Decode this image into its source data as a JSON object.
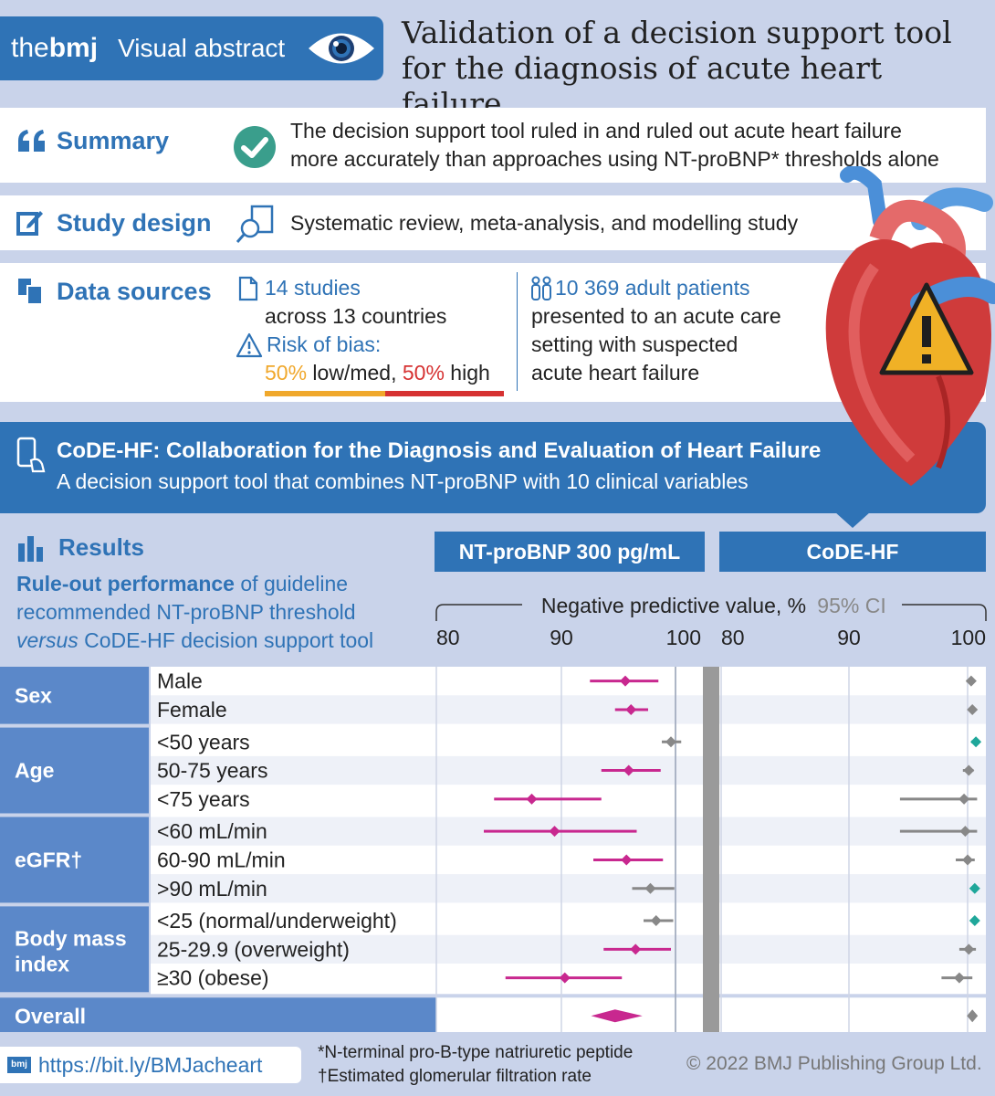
{
  "header": {
    "brand_the": "the",
    "brand_bmj": "bmj",
    "brand_label": "Visual abstract",
    "title_line1": "Validation of a decision support tool",
    "title_line2": "for the diagnosis of acute heart failure"
  },
  "summary": {
    "label": "Summary",
    "text_line1": "The decision support tool ruled in and ruled out acute heart failure",
    "text_line2": "more accurately than approaches using NT-proBNP* thresholds alone"
  },
  "study_design": {
    "label": "Study design",
    "text": "Systematic review, meta-analysis, and modelling study"
  },
  "data_sources": {
    "label": "Data sources",
    "studies": "14 studies",
    "countries": "across 13 countries",
    "risk_label": "Risk of bias:",
    "low_pct": "50%",
    "low_text": " low/med, ",
    "high_pct": "50%",
    "high_text": " high",
    "patients": "10 369 adult patients",
    "patients_line2": "presented to an acute care",
    "patients_line3": "setting with suspected",
    "patients_line4": "acute heart failure"
  },
  "banner": {
    "title": "CoDE-HF: Collaboration for the Diagnosis and Evaluation of Heart Failure",
    "subtitle": "A decision support tool that combines NT-proBNP with 10 clinical variables"
  },
  "results": {
    "label": "Results",
    "desc_bold": "Rule-out performance",
    "desc_rest": " of guideline",
    "desc_line2": "recommended NT-proBNP threshold",
    "desc_versus": "versus",
    "desc_line3_rest": " CoDE-HF decision support tool",
    "col1": "NT-proBNP 300 pg/mL",
    "col2": "CoDE-HF"
  },
  "footer": {
    "link": "https://bit.ly/BMJacheart",
    "note1": "*N-terminal pro-B-type natriuretic peptide",
    "note2": "†Estimated glomerular filtration rate",
    "copyright": "© 2022 BMJ Publishing Group Ltd."
  },
  "colors": {
    "accent": "#2f73b6",
    "nt_sig": "#c8288f",
    "nt_ns": "#888888",
    "code_sig": "#1fa79a",
    "code_ns": "#888888",
    "low": "#f0a82c",
    "high": "#d63232"
  },
  "chart_data": {
    "type": "forest",
    "axis_title": "Negative predictive value, %",
    "ci_label": "95% CI",
    "xlim": [
      80,
      100
    ],
    "ticks": [
      "80",
      "90",
      "100"
    ],
    "groups": [
      {
        "name": "Sex",
        "rows": [
          0,
          1
        ]
      },
      {
        "name": "Age",
        "rows": [
          2,
          3,
          4
        ]
      },
      {
        "name": "eGFR†",
        "rows": [
          5,
          6,
          7
        ]
      },
      {
        "name": "Body mass index",
        "rows": [
          8,
          9,
          10
        ]
      }
    ],
    "rows": [
      {
        "label": "Male",
        "nt": [
          95.6,
          92.5,
          98.5
        ],
        "nt_sig": true,
        "code": [
          100.3,
          99.9,
          100.6
        ],
        "code_sig": false
      },
      {
        "label": "Female",
        "nt": [
          96.1,
          94.7,
          97.6
        ],
        "nt_sig": true,
        "code": [
          100.4,
          100.1,
          100.7
        ],
        "code_sig": false
      },
      {
        "label": "<50 years",
        "nt": [
          99.6,
          98.8,
          100.5
        ],
        "nt_sig": false,
        "code": [
          100.7,
          100.3,
          101.0
        ],
        "code_sig": true
      },
      {
        "label": "50-75 years",
        "nt": [
          95.9,
          93.5,
          98.7
        ],
        "nt_sig": true,
        "code": [
          100.1,
          99.6,
          100.5
        ],
        "code_sig": false
      },
      {
        "label": "<75 years",
        "nt": [
          87.4,
          84.1,
          93.5
        ],
        "nt_sig": true,
        "code": [
          99.7,
          94.3,
          100.8
        ],
        "code_sig": false
      },
      {
        "label": "<60 mL/min",
        "nt": [
          89.4,
          83.2,
          96.6
        ],
        "nt_sig": true,
        "code": [
          99.8,
          94.3,
          100.8
        ],
        "code_sig": false
      },
      {
        "label": "60-90 mL/min",
        "nt": [
          95.7,
          92.8,
          98.9
        ],
        "nt_sig": true,
        "code": [
          100.0,
          99.0,
          100.6
        ],
        "code_sig": false
      },
      {
        "label": ">90 mL/min",
        "nt": [
          97.8,
          96.2,
          99.9
        ],
        "nt_sig": false,
        "code": [
          100.6,
          100.3,
          100.9
        ],
        "code_sig": true
      },
      {
        "label": "<25 (normal/underweight)",
        "nt": [
          98.3,
          97.2,
          99.8
        ],
        "nt_sig": false,
        "code": [
          100.6,
          100.3,
          100.9
        ],
        "code_sig": true
      },
      {
        "label": "25-29.9 (overweight)",
        "nt": [
          96.5,
          93.7,
          99.6
        ],
        "nt_sig": true,
        "code": [
          100.1,
          99.3,
          100.7
        ],
        "code_sig": false
      },
      {
        "label": "≥30 (obese)",
        "nt": [
          90.3,
          85.1,
          95.3
        ],
        "nt_sig": true,
        "code": [
          99.3,
          97.8,
          100.4
        ],
        "code_sig": false
      }
    ],
    "overall": {
      "label": "Overall",
      "nt": [
        94.7,
        92.6,
        97.1
      ],
      "nt_sig": true,
      "code": [
        100.4,
        100.1,
        100.6
      ],
      "code_sig": false
    }
  }
}
